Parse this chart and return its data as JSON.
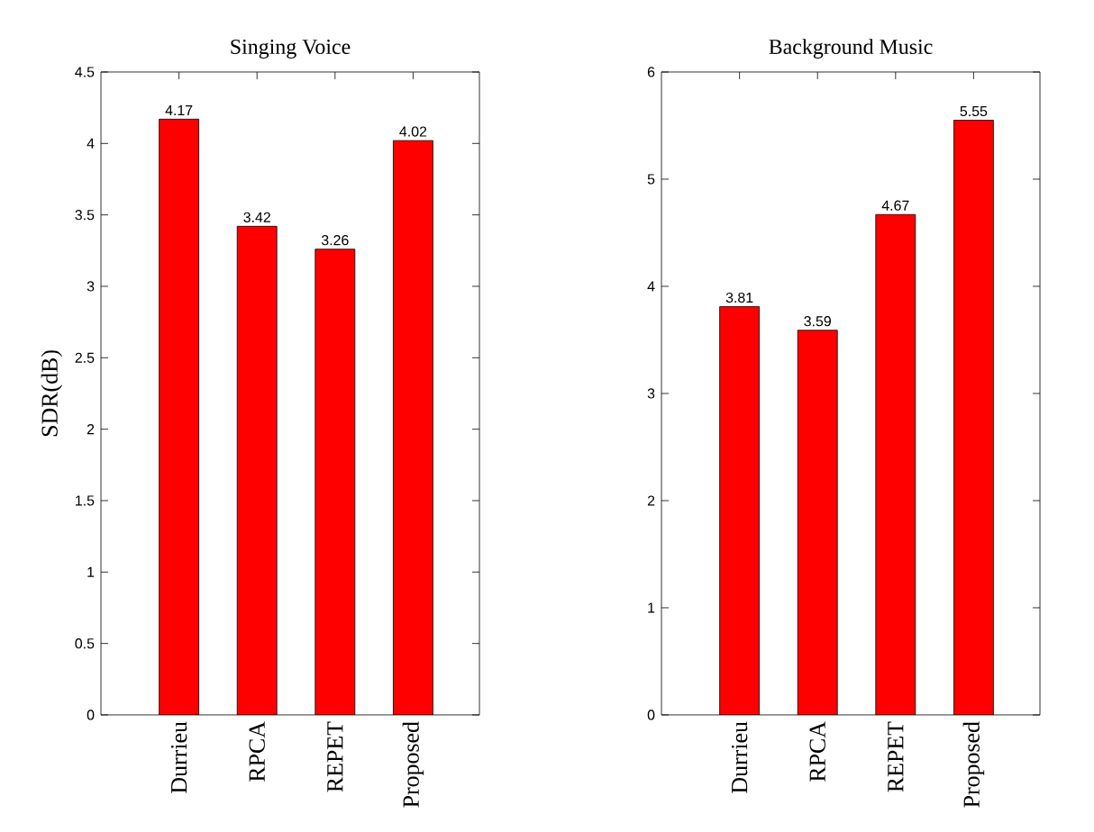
{
  "chart_data": [
    {
      "type": "bar",
      "title": "Singing Voice",
      "ylabel": "SDR(dB)",
      "categories": [
        "Durrieu",
        "RPCA",
        "REPET",
        "Proposed"
      ],
      "values": [
        4.17,
        3.42,
        3.26,
        4.02
      ],
      "color": "#ff0000",
      "data_labels": true,
      "ylim": [
        0,
        4.5
      ],
      "yticks": [
        0,
        0.5,
        1,
        1.5,
        2,
        2.5,
        3,
        3.5,
        4,
        4.5
      ]
    },
    {
      "type": "bar",
      "title": "Background Music",
      "categories": [
        "Durrieu",
        "RPCA",
        "REPET",
        "Proposed"
      ],
      "values": [
        3.81,
        3.59,
        4.67,
        5.55
      ],
      "color": "#ff0000",
      "data_labels": true,
      "ylim": [
        0,
        6
      ],
      "yticks": [
        0,
        1,
        2,
        3,
        4,
        5,
        6
      ]
    }
  ]
}
